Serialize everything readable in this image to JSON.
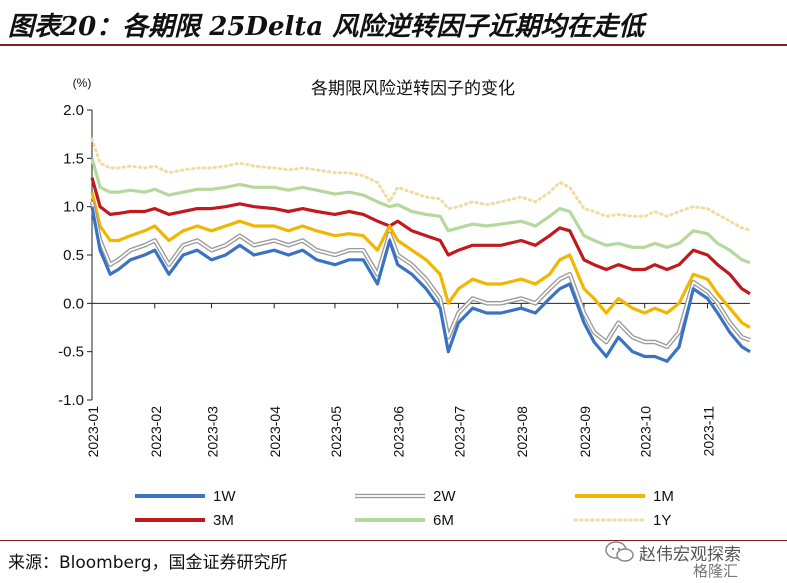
{
  "header": {
    "title": "图表20：各期限 25Delta 风险逆转因子近期均在走低"
  },
  "source": {
    "text": "来源：Bloomberg，国金证券研究所"
  },
  "watermark": {
    "text": "赵伟宏观探索",
    "text2": "格隆汇",
    "icon": "wechat-icon"
  },
  "colors": {
    "1W": "#3b73c4",
    "2W": "#9a9a9a",
    "1M": "#f2b600",
    "3M": "#c0191f",
    "6M": "#b4d89d",
    "1Y": "#f0dca0",
    "rule": "#8b1a1a"
  },
  "chart_data": {
    "type": "line",
    "title": "各期限风险逆转因子的变化",
    "ylabel": "(%)",
    "ylim": [
      -1.0,
      2.0
    ],
    "yticks": [
      "2.0",
      "1.5",
      "1.0",
      "0.5",
      "0.0",
      "-0.5",
      "-1.0"
    ],
    "ytick_values": [
      2.0,
      1.5,
      1.0,
      0.5,
      0.0,
      -0.5,
      -1.0
    ],
    "xticks": [
      "2023-01",
      "2023-02",
      "2023-03",
      "2023-04",
      "2023-05",
      "2023-06",
      "2023-07",
      "2023-08",
      "2023-09",
      "2023-10",
      "2023-11"
    ],
    "xtick_values": [
      "2023-01-01",
      "2023-02-01",
      "2023-03-01",
      "2023-04-01",
      "2023-05-01",
      "2023-06-01",
      "2023-07-01",
      "2023-08-01",
      "2023-09-01",
      "2023-10-01",
      "2023-11-01"
    ],
    "xlim": [
      "2023-01-01",
      "2023-11-22"
    ],
    "grid": false,
    "legend_position": "bottom",
    "series": [
      {
        "name": "1W",
        "style": "solid",
        "x": [
          "2023-01-01",
          "2023-01-05",
          "2023-01-10",
          "2023-01-14",
          "2023-01-20",
          "2023-01-27",
          "2023-02-01",
          "2023-02-08",
          "2023-02-15",
          "2023-02-22",
          "2023-03-01",
          "2023-03-08",
          "2023-03-15",
          "2023-03-22",
          "2023-04-01",
          "2023-04-08",
          "2023-04-15",
          "2023-04-22",
          "2023-05-01",
          "2023-05-08",
          "2023-05-15",
          "2023-05-22",
          "2023-05-28",
          "2023-06-01",
          "2023-06-08",
          "2023-06-15",
          "2023-06-22",
          "2023-06-26",
          "2023-07-01",
          "2023-07-08",
          "2023-07-15",
          "2023-07-22",
          "2023-08-01",
          "2023-08-08",
          "2023-08-15",
          "2023-08-20",
          "2023-08-25",
          "2023-09-01",
          "2023-09-06",
          "2023-09-12",
          "2023-09-18",
          "2023-09-25",
          "2023-10-01",
          "2023-10-06",
          "2023-10-12",
          "2023-10-18",
          "2023-10-25",
          "2023-11-01",
          "2023-11-06",
          "2023-11-12",
          "2023-11-18",
          "2023-11-22"
        ],
        "values": [
          1.0,
          0.55,
          0.3,
          0.35,
          0.45,
          0.5,
          0.55,
          0.3,
          0.5,
          0.55,
          0.45,
          0.5,
          0.6,
          0.5,
          0.55,
          0.5,
          0.55,
          0.45,
          0.4,
          0.45,
          0.45,
          0.2,
          0.65,
          0.4,
          0.3,
          0.15,
          -0.05,
          -0.5,
          -0.2,
          -0.05,
          -0.1,
          -0.1,
          -0.05,
          -0.1,
          0.05,
          0.15,
          0.2,
          -0.2,
          -0.4,
          -0.55,
          -0.35,
          -0.5,
          -0.55,
          -0.55,
          -0.6,
          -0.45,
          0.15,
          0.05,
          -0.1,
          -0.3,
          -0.45,
          -0.5
        ]
      },
      {
        "name": "2W",
        "style": "double",
        "x": [
          "2023-01-01",
          "2023-01-05",
          "2023-01-10",
          "2023-01-14",
          "2023-01-20",
          "2023-01-27",
          "2023-02-01",
          "2023-02-08",
          "2023-02-15",
          "2023-02-22",
          "2023-03-01",
          "2023-03-08",
          "2023-03-15",
          "2023-03-22",
          "2023-04-01",
          "2023-04-08",
          "2023-04-15",
          "2023-04-22",
          "2023-05-01",
          "2023-05-08",
          "2023-05-15",
          "2023-05-22",
          "2023-05-28",
          "2023-06-01",
          "2023-06-08",
          "2023-06-15",
          "2023-06-22",
          "2023-06-26",
          "2023-07-01",
          "2023-07-08",
          "2023-07-15",
          "2023-07-22",
          "2023-08-01",
          "2023-08-08",
          "2023-08-15",
          "2023-08-20",
          "2023-08-25",
          "2023-09-01",
          "2023-09-06",
          "2023-09-12",
          "2023-09-18",
          "2023-09-25",
          "2023-10-01",
          "2023-10-06",
          "2023-10-12",
          "2023-10-18",
          "2023-10-25",
          "2023-11-01",
          "2023-11-06",
          "2023-11-12",
          "2023-11-18",
          "2023-11-22"
        ],
        "values": [
          1.05,
          0.65,
          0.4,
          0.45,
          0.55,
          0.6,
          0.65,
          0.4,
          0.6,
          0.65,
          0.55,
          0.6,
          0.7,
          0.6,
          0.65,
          0.6,
          0.65,
          0.55,
          0.5,
          0.55,
          0.55,
          0.3,
          0.72,
          0.5,
          0.4,
          0.25,
          0.05,
          -0.35,
          -0.1,
          0.05,
          0.0,
          0.0,
          0.05,
          0.0,
          0.15,
          0.25,
          0.3,
          -0.1,
          -0.3,
          -0.4,
          -0.2,
          -0.35,
          -0.4,
          -0.4,
          -0.45,
          -0.3,
          0.22,
          0.12,
          0.0,
          -0.2,
          -0.35,
          -0.38
        ]
      },
      {
        "name": "1M",
        "style": "solid",
        "x": [
          "2023-01-01",
          "2023-01-05",
          "2023-01-10",
          "2023-01-14",
          "2023-01-20",
          "2023-01-27",
          "2023-02-01",
          "2023-02-08",
          "2023-02-15",
          "2023-02-22",
          "2023-03-01",
          "2023-03-08",
          "2023-03-15",
          "2023-03-22",
          "2023-04-01",
          "2023-04-08",
          "2023-04-15",
          "2023-04-22",
          "2023-05-01",
          "2023-05-08",
          "2023-05-15",
          "2023-05-22",
          "2023-05-28",
          "2023-06-01",
          "2023-06-08",
          "2023-06-15",
          "2023-06-22",
          "2023-06-26",
          "2023-07-01",
          "2023-07-08",
          "2023-07-15",
          "2023-07-22",
          "2023-08-01",
          "2023-08-08",
          "2023-08-15",
          "2023-08-20",
          "2023-08-25",
          "2023-09-01",
          "2023-09-06",
          "2023-09-12",
          "2023-09-18",
          "2023-09-25",
          "2023-10-01",
          "2023-10-06",
          "2023-10-12",
          "2023-10-18",
          "2023-10-25",
          "2023-11-01",
          "2023-11-06",
          "2023-11-12",
          "2023-11-18",
          "2023-11-22"
        ],
        "values": [
          1.15,
          0.8,
          0.65,
          0.65,
          0.7,
          0.75,
          0.8,
          0.65,
          0.75,
          0.8,
          0.75,
          0.8,
          0.85,
          0.8,
          0.8,
          0.75,
          0.8,
          0.75,
          0.7,
          0.72,
          0.7,
          0.55,
          0.8,
          0.65,
          0.55,
          0.45,
          0.3,
          0.0,
          0.15,
          0.25,
          0.2,
          0.2,
          0.25,
          0.2,
          0.3,
          0.45,
          0.5,
          0.15,
          0.05,
          -0.1,
          0.05,
          -0.05,
          -0.1,
          -0.05,
          -0.1,
          0.0,
          0.3,
          0.25,
          0.1,
          -0.05,
          -0.2,
          -0.25
        ]
      },
      {
        "name": "3M",
        "style": "solid",
        "x": [
          "2023-01-01",
          "2023-01-05",
          "2023-01-10",
          "2023-01-14",
          "2023-01-20",
          "2023-01-27",
          "2023-02-01",
          "2023-02-08",
          "2023-02-15",
          "2023-02-22",
          "2023-03-01",
          "2023-03-08",
          "2023-03-15",
          "2023-03-22",
          "2023-04-01",
          "2023-04-08",
          "2023-04-15",
          "2023-04-22",
          "2023-05-01",
          "2023-05-08",
          "2023-05-15",
          "2023-05-22",
          "2023-05-28",
          "2023-06-01",
          "2023-06-08",
          "2023-06-15",
          "2023-06-22",
          "2023-06-26",
          "2023-07-01",
          "2023-07-08",
          "2023-07-15",
          "2023-07-22",
          "2023-08-01",
          "2023-08-08",
          "2023-08-15",
          "2023-08-20",
          "2023-08-25",
          "2023-09-01",
          "2023-09-06",
          "2023-09-12",
          "2023-09-18",
          "2023-09-25",
          "2023-10-01",
          "2023-10-06",
          "2023-10-12",
          "2023-10-18",
          "2023-10-25",
          "2023-11-01",
          "2023-11-06",
          "2023-11-12",
          "2023-11-18",
          "2023-11-22"
        ],
        "values": [
          1.3,
          1.0,
          0.92,
          0.93,
          0.95,
          0.95,
          0.98,
          0.92,
          0.95,
          0.98,
          0.98,
          1.0,
          1.03,
          1.0,
          0.98,
          0.95,
          0.98,
          0.95,
          0.92,
          0.95,
          0.92,
          0.85,
          0.8,
          0.85,
          0.75,
          0.7,
          0.65,
          0.5,
          0.55,
          0.6,
          0.6,
          0.6,
          0.65,
          0.6,
          0.7,
          0.78,
          0.75,
          0.45,
          0.4,
          0.35,
          0.4,
          0.35,
          0.35,
          0.4,
          0.35,
          0.4,
          0.55,
          0.5,
          0.4,
          0.3,
          0.15,
          0.1
        ]
      },
      {
        "name": "6M",
        "style": "solid",
        "x": [
          "2023-01-01",
          "2023-01-05",
          "2023-01-10",
          "2023-01-14",
          "2023-01-20",
          "2023-01-27",
          "2023-02-01",
          "2023-02-08",
          "2023-02-15",
          "2023-02-22",
          "2023-03-01",
          "2023-03-08",
          "2023-03-15",
          "2023-03-22",
          "2023-04-01",
          "2023-04-08",
          "2023-04-15",
          "2023-04-22",
          "2023-05-01",
          "2023-05-08",
          "2023-05-15",
          "2023-05-22",
          "2023-05-28",
          "2023-06-01",
          "2023-06-08",
          "2023-06-15",
          "2023-06-22",
          "2023-06-26",
          "2023-07-01",
          "2023-07-08",
          "2023-07-15",
          "2023-07-22",
          "2023-08-01",
          "2023-08-08",
          "2023-08-15",
          "2023-08-20",
          "2023-08-25",
          "2023-09-01",
          "2023-09-06",
          "2023-09-12",
          "2023-09-18",
          "2023-09-25",
          "2023-10-01",
          "2023-10-06",
          "2023-10-12",
          "2023-10-18",
          "2023-10-25",
          "2023-11-01",
          "2023-11-06",
          "2023-11-12",
          "2023-11-18",
          "2023-11-22"
        ],
        "values": [
          1.5,
          1.2,
          1.15,
          1.15,
          1.17,
          1.15,
          1.18,
          1.12,
          1.15,
          1.18,
          1.18,
          1.2,
          1.23,
          1.2,
          1.2,
          1.17,
          1.2,
          1.17,
          1.13,
          1.15,
          1.12,
          1.05,
          1.0,
          1.02,
          0.95,
          0.92,
          0.9,
          0.75,
          0.78,
          0.82,
          0.8,
          0.82,
          0.85,
          0.8,
          0.9,
          0.98,
          0.95,
          0.7,
          0.65,
          0.6,
          0.62,
          0.58,
          0.58,
          0.62,
          0.58,
          0.62,
          0.75,
          0.72,
          0.62,
          0.55,
          0.45,
          0.42
        ]
      },
      {
        "name": "1Y",
        "style": "dotted",
        "x": [
          "2023-01-01",
          "2023-01-05",
          "2023-01-10",
          "2023-01-14",
          "2023-01-20",
          "2023-01-27",
          "2023-02-01",
          "2023-02-08",
          "2023-02-15",
          "2023-02-22",
          "2023-03-01",
          "2023-03-08",
          "2023-03-15",
          "2023-03-22",
          "2023-04-01",
          "2023-04-08",
          "2023-04-15",
          "2023-04-22",
          "2023-05-01",
          "2023-05-08",
          "2023-05-15",
          "2023-05-22",
          "2023-05-28",
          "2023-06-01",
          "2023-06-08",
          "2023-06-15",
          "2023-06-22",
          "2023-06-26",
          "2023-07-01",
          "2023-07-08",
          "2023-07-15",
          "2023-07-22",
          "2023-08-01",
          "2023-08-08",
          "2023-08-15",
          "2023-08-20",
          "2023-08-25",
          "2023-09-01",
          "2023-09-06",
          "2023-09-12",
          "2023-09-18",
          "2023-09-25",
          "2023-10-01",
          "2023-10-06",
          "2023-10-12",
          "2023-10-18",
          "2023-10-25",
          "2023-11-01",
          "2023-11-06",
          "2023-11-12",
          "2023-11-18",
          "2023-11-22"
        ],
        "values": [
          1.7,
          1.45,
          1.4,
          1.4,
          1.42,
          1.4,
          1.42,
          1.35,
          1.38,
          1.4,
          1.4,
          1.42,
          1.45,
          1.42,
          1.4,
          1.38,
          1.4,
          1.38,
          1.35,
          1.35,
          1.32,
          1.25,
          1.05,
          1.2,
          1.15,
          1.1,
          1.08,
          0.98,
          1.0,
          1.05,
          1.02,
          1.05,
          1.1,
          1.05,
          1.15,
          1.25,
          1.2,
          0.98,
          0.95,
          0.9,
          0.92,
          0.9,
          0.9,
          0.95,
          0.9,
          0.95,
          1.0,
          0.98,
          0.92,
          0.85,
          0.78,
          0.76
        ]
      }
    ]
  }
}
